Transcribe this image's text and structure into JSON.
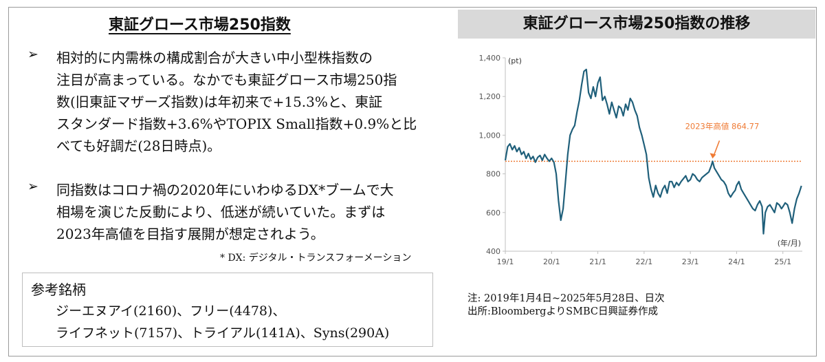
{
  "left": {
    "title": "東証グロース市場250指数",
    "bullet_mark": "➢",
    "bullets": [
      {
        "lines": [
          "相対的に内需株の構成割合が大きい中小型株指数の",
          "注目が高まっている。なかでも東証グロース市場250指",
          "数(旧東証マザーズ指数)は年初来で+15.3%と、東証",
          "スタンダード指数+3.6%やTOPIX Small指数+0.9%と比",
          "べても好調だ(28日時点)。"
        ]
      },
      {
        "lines": [
          "同指数はコロナ禍の2020年にいわゆるDX*ブームで大",
          "相場を演じた反動により、低迷が続いていた。まずは",
          "2023年高値を目指す展開が想定されよう。"
        ]
      }
    ],
    "footnote": "* DX:  デジタル・トランスフォーメーション",
    "reference": {
      "title": "参考銘柄",
      "lines": [
        "ジーエヌアイ(2160)、フリー(4478)、",
        "ライフネット(7157)、トライアル(141A)、Syns(290A)"
      ]
    }
  },
  "right": {
    "header": "東証グロース市場250指数の推移",
    "note_lines": [
      "注:  2019年1月4日~2025年5月28日、日次",
      "出所:BloombergよりSMBC日興証券作成"
    ]
  },
  "chart_data": {
    "type": "line",
    "title": "東証グロース市場250指数の推移",
    "yunit_label": "(pt)",
    "xunit_label": "(年/月)",
    "ylim": [
      400,
      1400
    ],
    "yticks": [
      400,
      600,
      800,
      1000,
      1200,
      1400
    ],
    "ytick_labels": [
      "400",
      "600",
      "800",
      "1,000",
      "1,200",
      "1,400"
    ],
    "xticks": [
      2019.0,
      2020.0,
      2021.0,
      2022.0,
      2023.0,
      2024.0,
      2025.0
    ],
    "xtick_labels": [
      "19/1",
      "20/1",
      "21/1",
      "22/1",
      "23/1",
      "24/1",
      "25/1"
    ],
    "xlim": [
      2019.0,
      2025.42
    ],
    "line_color": "#1f5f7a",
    "reference_line": {
      "value": 864.77,
      "label": "2023年高値 864.77",
      "color": "#ef7b35"
    },
    "series": [
      {
        "values": [
          [
            2019.0,
            870
          ],
          [
            2019.05,
            940
          ],
          [
            2019.1,
            955
          ],
          [
            2019.15,
            925
          ],
          [
            2019.2,
            945
          ],
          [
            2019.25,
            915
          ],
          [
            2019.3,
            935
          ],
          [
            2019.35,
            900
          ],
          [
            2019.4,
            915
          ],
          [
            2019.45,
            880
          ],
          [
            2019.5,
            905
          ],
          [
            2019.55,
            875
          ],
          [
            2019.6,
            890
          ],
          [
            2019.65,
            860
          ],
          [
            2019.7,
            885
          ],
          [
            2019.75,
            895
          ],
          [
            2019.8,
            870
          ],
          [
            2019.85,
            900
          ],
          [
            2019.9,
            880
          ],
          [
            2019.95,
            865
          ],
          [
            2020.0,
            880
          ],
          [
            2020.05,
            860
          ],
          [
            2020.1,
            800
          ],
          [
            2020.15,
            660
          ],
          [
            2020.2,
            560
          ],
          [
            2020.25,
            620
          ],
          [
            2020.3,
            760
          ],
          [
            2020.35,
            900
          ],
          [
            2020.4,
            1000
          ],
          [
            2020.45,
            1030
          ],
          [
            2020.5,
            1050
          ],
          [
            2020.55,
            1120
          ],
          [
            2020.6,
            1180
          ],
          [
            2020.65,
            1260
          ],
          [
            2020.7,
            1330
          ],
          [
            2020.75,
            1340
          ],
          [
            2020.8,
            1220
          ],
          [
            2020.85,
            1190
          ],
          [
            2020.9,
            1250
          ],
          [
            2020.95,
            1200
          ],
          [
            2021.0,
            1270
          ],
          [
            2021.05,
            1300
          ],
          [
            2021.1,
            1180
          ],
          [
            2021.15,
            1200
          ],
          [
            2021.2,
            1160
          ],
          [
            2021.25,
            1110
          ],
          [
            2021.3,
            1170
          ],
          [
            2021.35,
            1130
          ],
          [
            2021.4,
            1090
          ],
          [
            2021.45,
            1150
          ],
          [
            2021.5,
            1140
          ],
          [
            2021.55,
            1100
          ],
          [
            2021.6,
            1160
          ],
          [
            2021.65,
            1130
          ],
          [
            2021.7,
            1190
          ],
          [
            2021.75,
            1170
          ],
          [
            2021.8,
            1130
          ],
          [
            2021.85,
            1100
          ],
          [
            2021.9,
            1040
          ],
          [
            2021.95,
            1000
          ],
          [
            2022.0,
            950
          ],
          [
            2022.05,
            900
          ],
          [
            2022.1,
            780
          ],
          [
            2022.15,
            720
          ],
          [
            2022.2,
            680
          ],
          [
            2022.25,
            740
          ],
          [
            2022.3,
            700
          ],
          [
            2022.35,
            680
          ],
          [
            2022.4,
            720
          ],
          [
            2022.45,
            740
          ],
          [
            2022.5,
            700
          ],
          [
            2022.55,
            760
          ],
          [
            2022.6,
            760
          ],
          [
            2022.65,
            730
          ],
          [
            2022.7,
            755
          ],
          [
            2022.75,
            740
          ],
          [
            2022.8,
            760
          ],
          [
            2022.85,
            775
          ],
          [
            2022.9,
            790
          ],
          [
            2022.95,
            760
          ],
          [
            2023.0,
            770
          ],
          [
            2023.05,
            800
          ],
          [
            2023.1,
            790
          ],
          [
            2023.15,
            770
          ],
          [
            2023.2,
            760
          ],
          [
            2023.25,
            780
          ],
          [
            2023.3,
            790
          ],
          [
            2023.35,
            800
          ],
          [
            2023.4,
            810
          ],
          [
            2023.45,
            840
          ],
          [
            2023.48,
            864.77
          ],
          [
            2023.52,
            830
          ],
          [
            2023.57,
            810
          ],
          [
            2023.62,
            790
          ],
          [
            2023.67,
            770
          ],
          [
            2023.72,
            760
          ],
          [
            2023.77,
            740
          ],
          [
            2023.82,
            700
          ],
          [
            2023.87,
            680
          ],
          [
            2023.92,
            700
          ],
          [
            2023.97,
            715
          ],
          [
            2024.0,
            740
          ],
          [
            2024.05,
            760
          ],
          [
            2024.1,
            720
          ],
          [
            2024.15,
            700
          ],
          [
            2024.2,
            680
          ],
          [
            2024.25,
            660
          ],
          [
            2024.3,
            640
          ],
          [
            2024.35,
            620
          ],
          [
            2024.4,
            610
          ],
          [
            2024.45,
            640
          ],
          [
            2024.5,
            660
          ],
          [
            2024.55,
            630
          ],
          [
            2024.58,
            490
          ],
          [
            2024.62,
            600
          ],
          [
            2024.67,
            630
          ],
          [
            2024.72,
            640
          ],
          [
            2024.77,
            620
          ],
          [
            2024.82,
            600
          ],
          [
            2024.87,
            650
          ],
          [
            2024.92,
            640
          ],
          [
            2024.97,
            620
          ],
          [
            2025.0,
            630
          ],
          [
            2025.05,
            650
          ],
          [
            2025.1,
            640
          ],
          [
            2025.15,
            600
          ],
          [
            2025.2,
            545
          ],
          [
            2025.25,
            620
          ],
          [
            2025.3,
            670
          ],
          [
            2025.35,
            700
          ],
          [
            2025.4,
            738
          ]
        ]
      }
    ]
  }
}
